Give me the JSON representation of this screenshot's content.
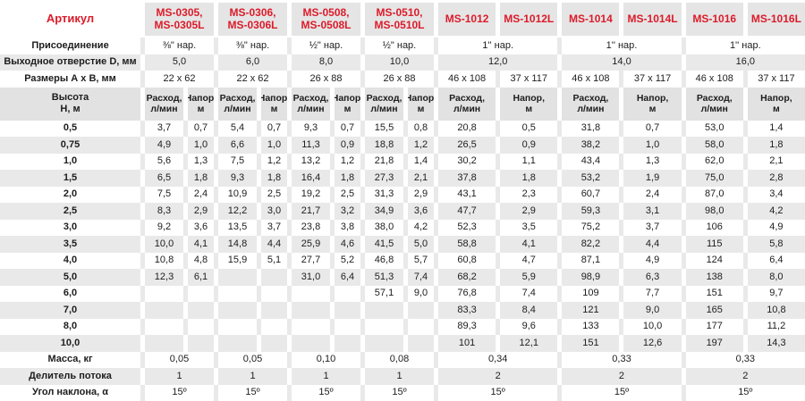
{
  "colors": {
    "red": "#dc1b2a",
    "gray": "#e9e9e9",
    "hgray": "#e5e5e5",
    "shgray": "#e2e2e2",
    "text": "#1d1d1d"
  },
  "header": {
    "label": "Артикул",
    "cols": [
      "MS-0305,\nMS-0305L",
      "MS-0306,\nMS-0306L",
      "MS-0508,\nMS-0508L",
      "MS-0510,\nMS-0510L",
      "MS-1012",
      "MS-1012L",
      "MS-1014",
      "MS-1014L",
      "MS-1016",
      "MS-1016L"
    ]
  },
  "connection": {
    "label": "Присоединение",
    "values": [
      "⅜\" нар.",
      "⅜\" нар.",
      "½\" нар.",
      "½\" нар.",
      "1'' нар.",
      "1'' нар.",
      "1'' нар."
    ]
  },
  "outlet": {
    "label": "Выходное отверстие D, мм",
    "values": [
      "5,0",
      "6,0",
      "8,0",
      "10,0",
      "12,0",
      "14,0",
      "16,0"
    ]
  },
  "dimensions": {
    "label": "Размеры А x В, мм",
    "values": [
      "22 x 62",
      "22 x 62",
      "26 x 88",
      "26 x 88",
      "46 x 108",
      "37 x 117",
      "46 x 108",
      "37 x 117",
      "46 x 108",
      "37 x 117"
    ]
  },
  "subheader": {
    "label": "Высота\nН, м",
    "flow": "Расход,\nл/мин",
    "head": "Напор,\nм"
  },
  "rows": [
    {
      "h": "0,5",
      "v": [
        "3,7",
        "0,7",
        "5,4",
        "0,7",
        "9,3",
        "0,7",
        "15,5",
        "0,8",
        "20,8",
        "0,5",
        "31,8",
        "0,7",
        "53,0",
        "1,4"
      ]
    },
    {
      "h": "0,75",
      "v": [
        "4,9",
        "1,0",
        "6,6",
        "1,0",
        "11,3",
        "0,9",
        "18,8",
        "1,2",
        "26,5",
        "0,9",
        "38,2",
        "1,0",
        "58,0",
        "1,8"
      ]
    },
    {
      "h": "1,0",
      "v": [
        "5,6",
        "1,3",
        "7,5",
        "1,2",
        "13,2",
        "1,2",
        "21,8",
        "1,4",
        "30,2",
        "1,1",
        "43,4",
        "1,3",
        "62,0",
        "2,1"
      ]
    },
    {
      "h": "1,5",
      "v": [
        "6,5",
        "1,8",
        "9,3",
        "1,8",
        "16,4",
        "1,8",
        "27,3",
        "2,1",
        "37,8",
        "1,8",
        "53,2",
        "1,9",
        "75,0",
        "2,8"
      ]
    },
    {
      "h": "2,0",
      "v": [
        "7,5",
        "2,4",
        "10,9",
        "2,5",
        "19,2",
        "2,5",
        "31,3",
        "2,9",
        "43,1",
        "2,3",
        "60,7",
        "2,4",
        "87,0",
        "3,4"
      ]
    },
    {
      "h": "2,5",
      "v": [
        "8,3",
        "2,9",
        "12,2",
        "3,0",
        "21,7",
        "3,2",
        "34,9",
        "3,6",
        "47,7",
        "2,9",
        "59,3",
        "3,1",
        "98,0",
        "4,2"
      ]
    },
    {
      "h": "3,0",
      "v": [
        "9,2",
        "3,6",
        "13,5",
        "3,7",
        "23,8",
        "3,8",
        "38,0",
        "4,2",
        "52,3",
        "3,5",
        "75,2",
        "3,7",
        "106",
        "4,9"
      ]
    },
    {
      "h": "3,5",
      "v": [
        "10,0",
        "4,1",
        "14,8",
        "4,4",
        "25,9",
        "4,6",
        "41,5",
        "5,0",
        "58,8",
        "4,1",
        "82,2",
        "4,4",
        "115",
        "5,8"
      ]
    },
    {
      "h": "4,0",
      "v": [
        "10,8",
        "4,8",
        "15,9",
        "5,1",
        "27,7",
        "5,2",
        "46,8",
        "5,7",
        "60,8",
        "4,7",
        "87,1",
        "4,9",
        "124",
        "6,4"
      ]
    },
    {
      "h": "5,0",
      "v": [
        "12,3",
        "6,1",
        "",
        "",
        "31,0",
        "6,4",
        "51,3",
        "7,4",
        "68,2",
        "5,9",
        "98,9",
        "6,3",
        "138",
        "8,0"
      ]
    },
    {
      "h": "6,0",
      "v": [
        "",
        "",
        "",
        "",
        "",
        "",
        "57,1",
        "9,0",
        "76,8",
        "7,4",
        "109",
        "7,7",
        "151",
        "9,7"
      ]
    },
    {
      "h": "7,0",
      "v": [
        "",
        "",
        "",
        "",
        "",
        "",
        "",
        "",
        "83,3",
        "8,4",
        "121",
        "9,0",
        "165",
        "10,8"
      ]
    },
    {
      "h": "8,0",
      "v": [
        "",
        "",
        "",
        "",
        "",
        "",
        "",
        "",
        "89,3",
        "9,6",
        "133",
        "10,0",
        "177",
        "11,2"
      ]
    },
    {
      "h": "10,0",
      "v": [
        "",
        "",
        "",
        "",
        "",
        "",
        "",
        "",
        "101",
        "12,1",
        "151",
        "12,6",
        "197",
        "14,3"
      ]
    }
  ],
  "mass": {
    "label": "Масса, кг",
    "values": [
      "0,05",
      "0,05",
      "0,10",
      "0,08",
      "0,34",
      "0,33",
      "0,33"
    ]
  },
  "divider": {
    "label": "Делитель потока",
    "values": [
      "1",
      "1",
      "1",
      "1",
      "2",
      "2",
      "2"
    ]
  },
  "angle": {
    "label": "Угол наклона, α",
    "values": [
      "15º",
      "15º",
      "15º",
      "15º",
      "15º",
      "15º",
      "15º"
    ]
  }
}
